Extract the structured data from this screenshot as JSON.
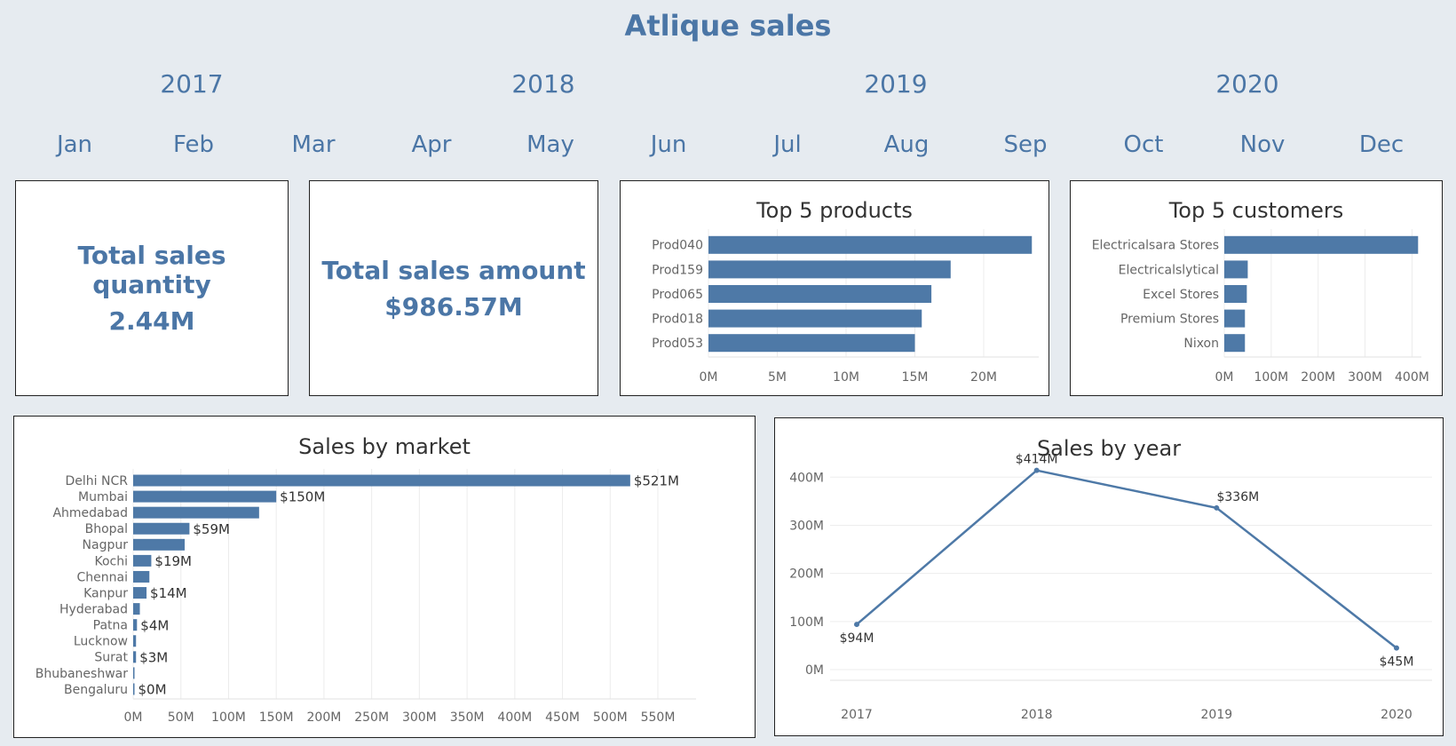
{
  "title": "Atlique sales",
  "years": [
    "2017",
    "2018",
    "2019",
    "2020"
  ],
  "months": [
    "Jan",
    "Feb",
    "Mar",
    "Apr",
    "May",
    "Jun",
    "Jul",
    "Aug",
    "Sep",
    "Oct",
    "Nov",
    "Dec"
  ],
  "kpis": {
    "quantity": {
      "label": "Total sales quantity",
      "value": "2.44M"
    },
    "amount": {
      "label": "Total sales amount",
      "value": "$986.57M"
    }
  },
  "colors": {
    "accent": "#4b76a6",
    "bar": "#4e79a7",
    "background": "#e6ebf0"
  },
  "chart_data": [
    {
      "id": "top-products",
      "type": "bar",
      "orientation": "horizontal",
      "title": "Top 5 products",
      "categories": [
        "Prod040",
        "Prod159",
        "Prod065",
        "Prod018",
        "Prod053"
      ],
      "values": [
        23.5,
        17.6,
        16.2,
        15.5,
        15.0
      ],
      "xlim": [
        0,
        24
      ],
      "ticks": [
        0,
        5,
        10,
        15,
        20
      ],
      "tick_labels": [
        "0M",
        "5M",
        "10M",
        "15M",
        "20M"
      ]
    },
    {
      "id": "top-customers",
      "type": "bar",
      "orientation": "horizontal",
      "title": "Top 5 customers",
      "categories": [
        "Electricalsara Stores",
        "Electricalslytical",
        "Excel Stores",
        "Premium Stores",
        "Nixon"
      ],
      "values": [
        413,
        50,
        48,
        44,
        44
      ],
      "xlim": [
        0,
        420
      ],
      "ticks": [
        0,
        100,
        200,
        300,
        400
      ],
      "tick_labels": [
        "0M",
        "100M",
        "200M",
        "300M",
        "400M"
      ]
    },
    {
      "id": "sales-by-market",
      "type": "bar",
      "orientation": "horizontal",
      "title": "Sales by market",
      "categories": [
        "Delhi NCR",
        "Mumbai",
        "Ahmedabad",
        "Bhopal",
        "Nagpur",
        "Kochi",
        "Chennai",
        "Kanpur",
        "Hyderabad",
        "Patna",
        "Lucknow",
        "Surat",
        "Bhubaneshwar",
        "Bengaluru"
      ],
      "values": [
        521,
        150,
        132,
        59,
        54,
        19,
        17,
        14,
        7,
        4,
        3,
        3,
        0.5,
        0.4
      ],
      "data_labels": [
        "$521M",
        "$150M",
        "",
        "$59M",
        "",
        "$19M",
        "",
        "$14M",
        "",
        "$4M",
        "",
        "$3M",
        "",
        "$0M"
      ],
      "xlim": [
        0,
        590
      ],
      "ticks": [
        0,
        50,
        100,
        150,
        200,
        250,
        300,
        350,
        400,
        450,
        500,
        550
      ],
      "tick_labels": [
        "0M",
        "50M",
        "100M",
        "150M",
        "200M",
        "250M",
        "300M",
        "350M",
        "400M",
        "450M",
        "500M",
        "550M"
      ]
    },
    {
      "id": "sales-by-year",
      "type": "line",
      "title": "Sales by year",
      "x": [
        "2017",
        "2018",
        "2019",
        "2020"
      ],
      "values": [
        94,
        414,
        336,
        45
      ],
      "data_labels": [
        "$94M",
        "$414M",
        "$336M",
        "$45M"
      ],
      "ylim": [
        0,
        430
      ],
      "ticks": [
        0,
        100,
        200,
        300,
        400
      ],
      "tick_labels": [
        "0M",
        "100M",
        "200M",
        "300M",
        "400M"
      ]
    }
  ]
}
